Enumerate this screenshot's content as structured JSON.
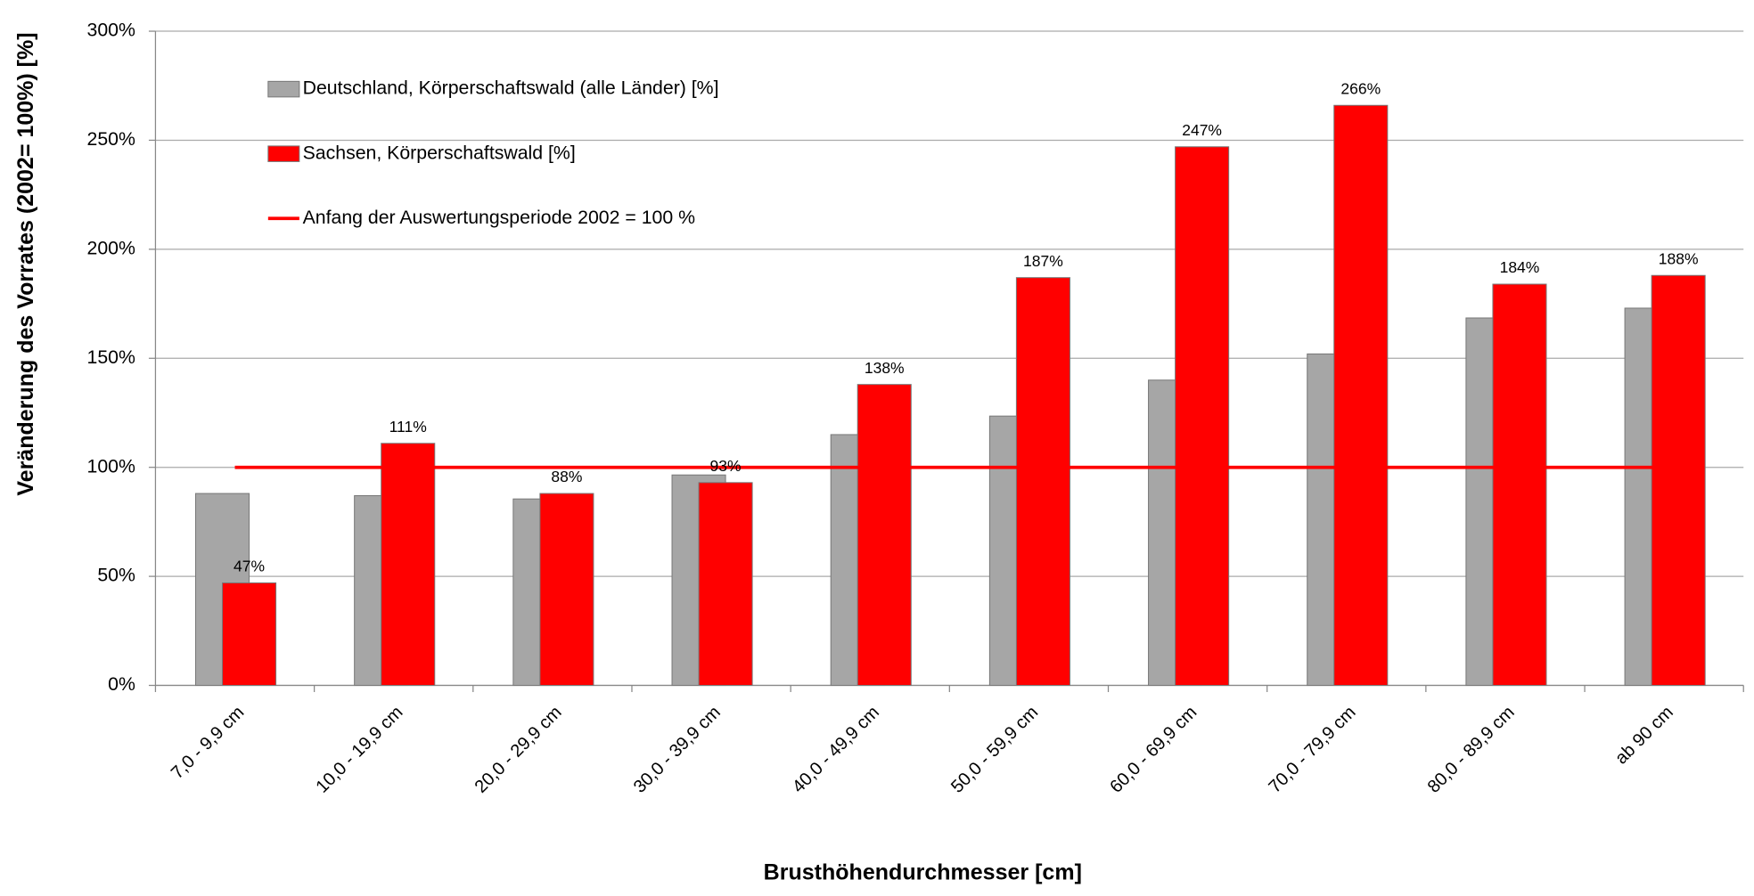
{
  "chart_data": {
    "type": "bar",
    "y_label": "Veränderung des Vorrates (2002= 100%) [%]",
    "x_label": "Brusthöhendurchmesser [cm]",
    "categories": [
      "7,0 - 9,9 cm",
      "10,0 - 19,9 cm",
      "20,0 - 29,9 cm",
      "30,0 - 39,9 cm",
      "40,0 - 49,9 cm",
      "50,0 - 59,9 cm",
      "60,0 - 69,9 cm",
      "70,0 - 79,9 cm",
      "80,0 - 89,9 cm",
      "ab 90 cm"
    ],
    "series": [
      {
        "name": "Deutschland, Körperschaftswald (alle Länder) [%]",
        "color": "#a6a6a6",
        "values": [
          88,
          87,
          85.5,
          96.5,
          115,
          123.5,
          140,
          152,
          168.5,
          173
        ]
      },
      {
        "name": "Sachsen, Körperschaftswald [%]",
        "color": "#ff0000",
        "values": [
          47,
          111,
          88,
          93,
          138,
          187,
          247,
          266,
          184,
          188
        ],
        "value_labels": [
          "47%",
          "111%",
          "88%",
          "93%",
          "138%",
          "187%",
          "247%",
          "266%",
          "184%",
          "188%"
        ]
      }
    ],
    "reference_line": {
      "name": "Anfang der Auswertungsperiode 2002 = 100 %",
      "value": 100,
      "color": "#ff0000"
    },
    "ylim": [
      0,
      300
    ],
    "yticks": [
      {
        "value": 0,
        "label": "0%"
      },
      {
        "value": 50,
        "label": "50%"
      },
      {
        "value": 100,
        "label": "100%"
      },
      {
        "value": 150,
        "label": "150%"
      },
      {
        "value": 200,
        "label": "200%"
      },
      {
        "value": 250,
        "label": "250%"
      },
      {
        "value": 300,
        "label": "300%"
      }
    ],
    "grid": true,
    "legend": "top-left"
  }
}
